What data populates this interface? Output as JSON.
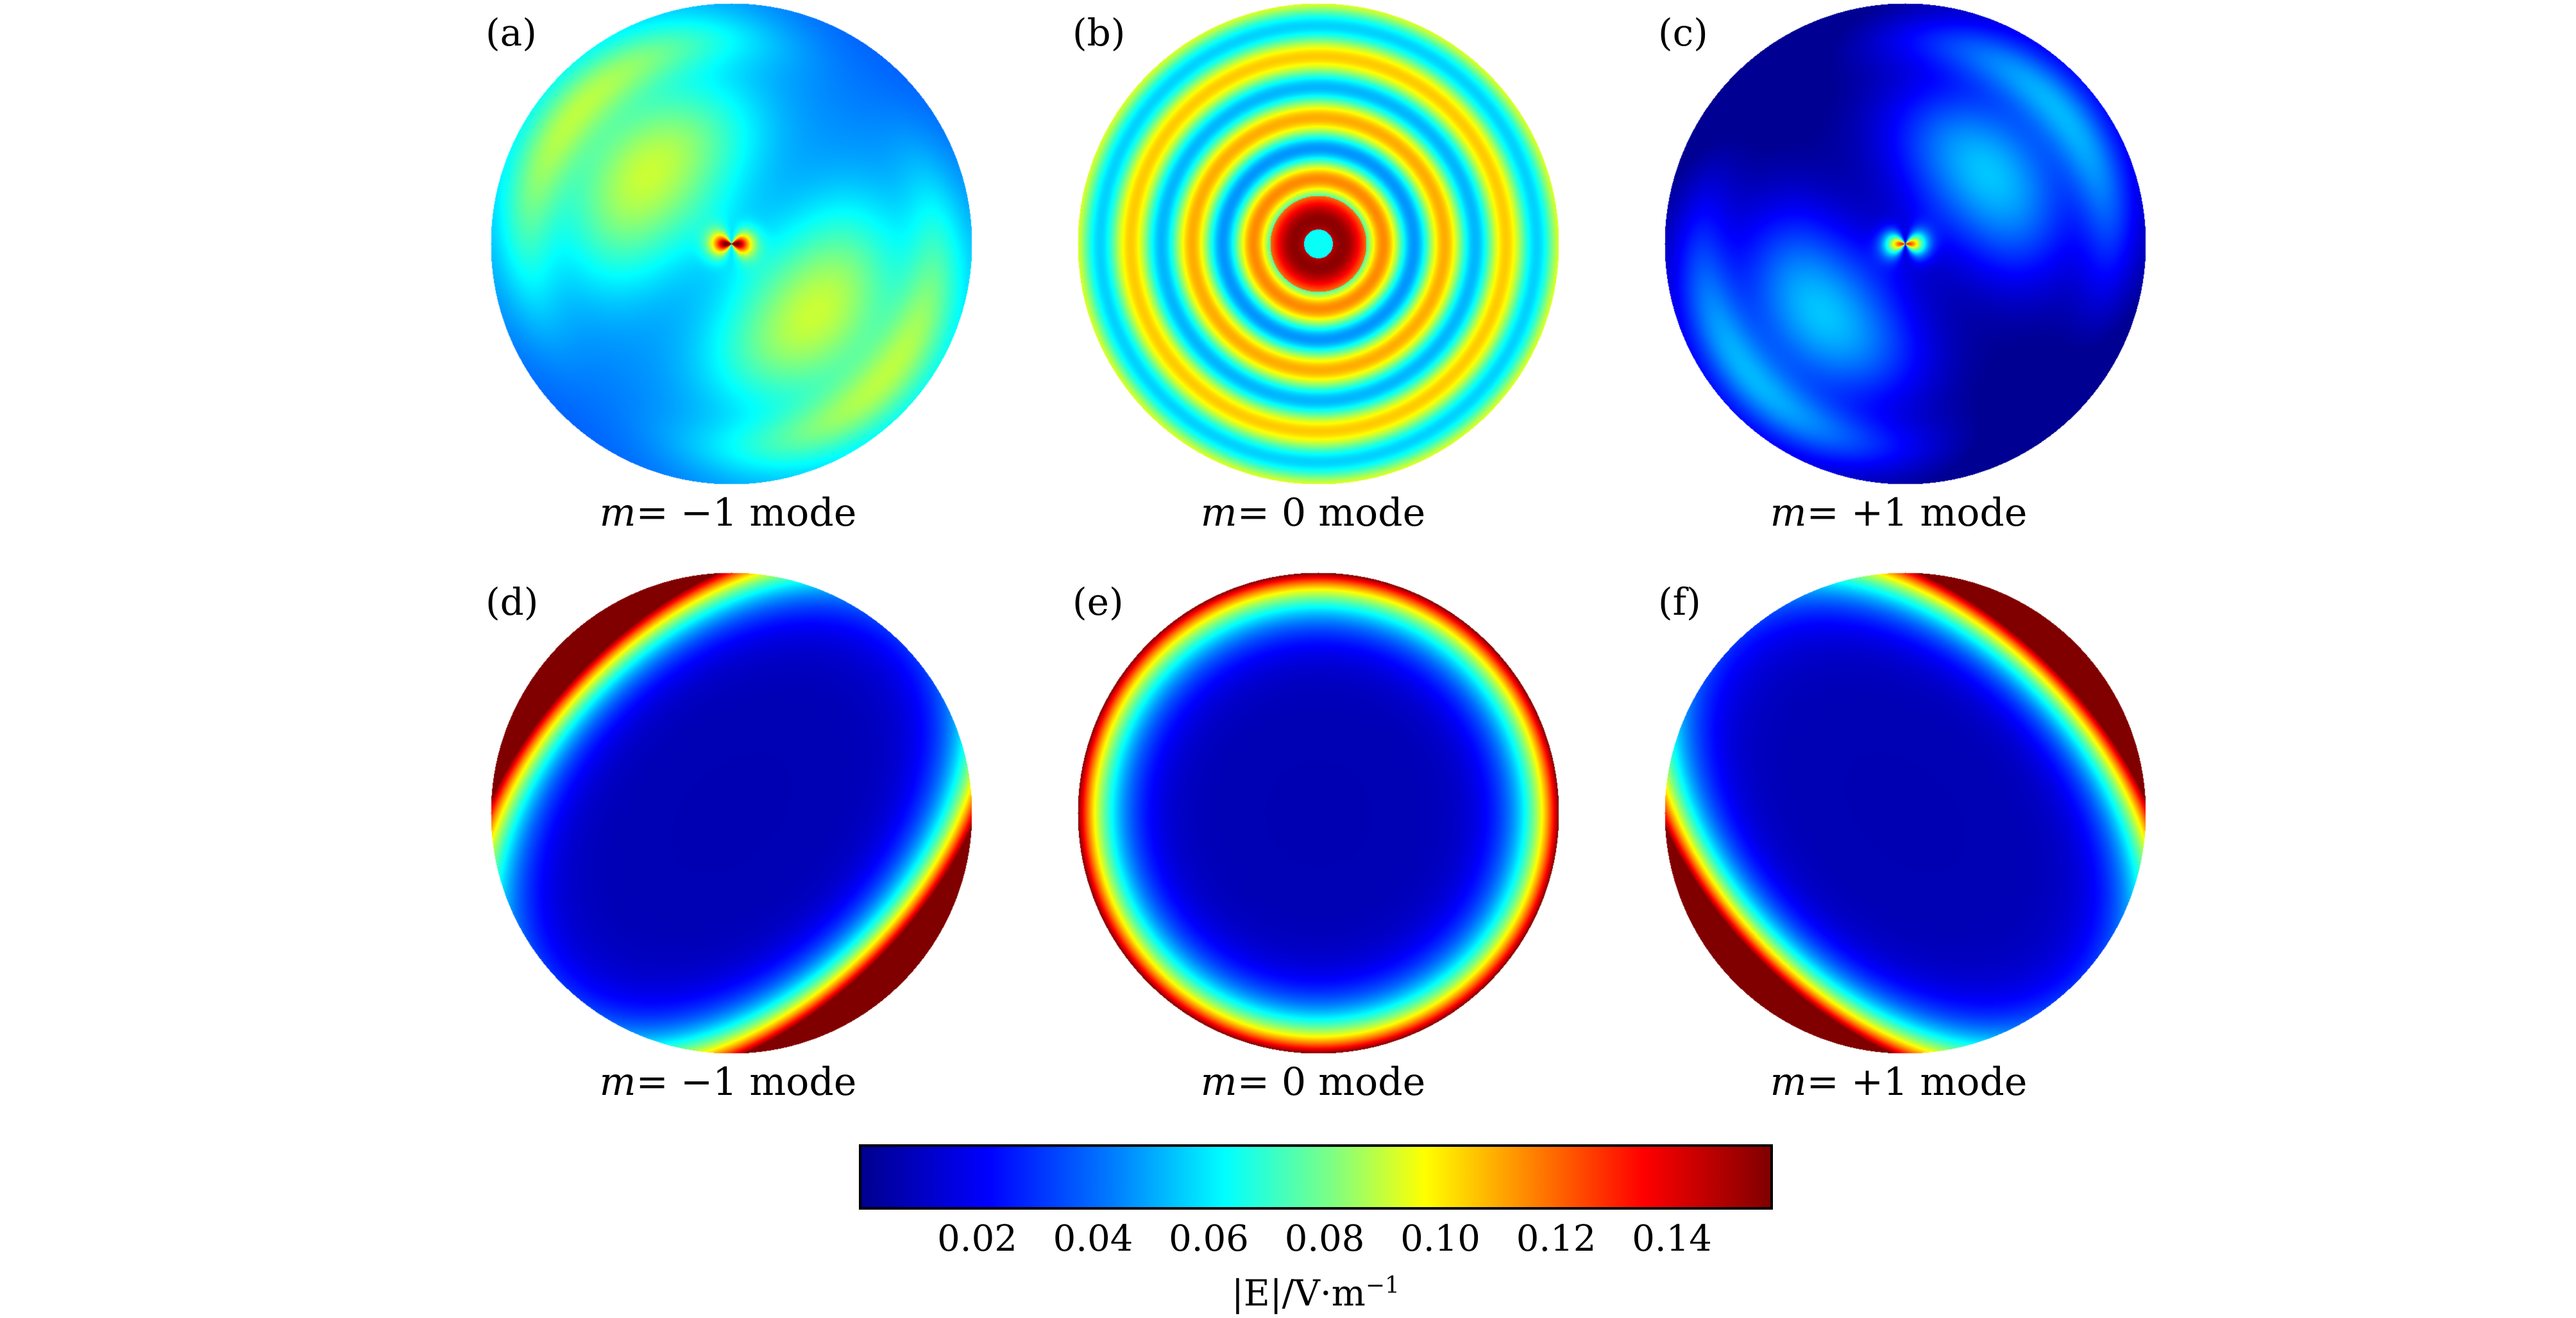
{
  "panels": [
    {
      "label": "(a)",
      "caption_var": "m",
      "caption_rest": "= −1 mode",
      "pattern": "lobes",
      "bg": 0.055,
      "sign": -1
    },
    {
      "label": "(b)",
      "caption_var": "m",
      "caption_rest": "= 0 mode",
      "pattern": "rings"
    },
    {
      "label": "(c)",
      "caption_var": "m",
      "caption_rest": "= +1 mode",
      "pattern": "lobes",
      "bg": 0.015,
      "sign": 1
    },
    {
      "label": "(d)",
      "caption_var": "m",
      "caption_rest": "= −1 mode",
      "pattern": "edge",
      "sign": -1
    },
    {
      "label": "(e)",
      "caption_var": "m",
      "caption_rest": "= 0 mode",
      "pattern": "edge",
      "sign": 0
    },
    {
      "label": "(f)",
      "caption_var": "m",
      "caption_rest": "= +1 mode",
      "pattern": "edge",
      "sign": 1
    }
  ],
  "colorbar": {
    "min": 0,
    "max": 0.157,
    "ticks": [
      "0.02",
      "0.04",
      "0.06",
      "0.08",
      "0.10",
      "0.12",
      "0.14"
    ],
    "title_main": "|E|/V·m",
    "title_sup": "−1"
  },
  "colormap": "jet"
}
